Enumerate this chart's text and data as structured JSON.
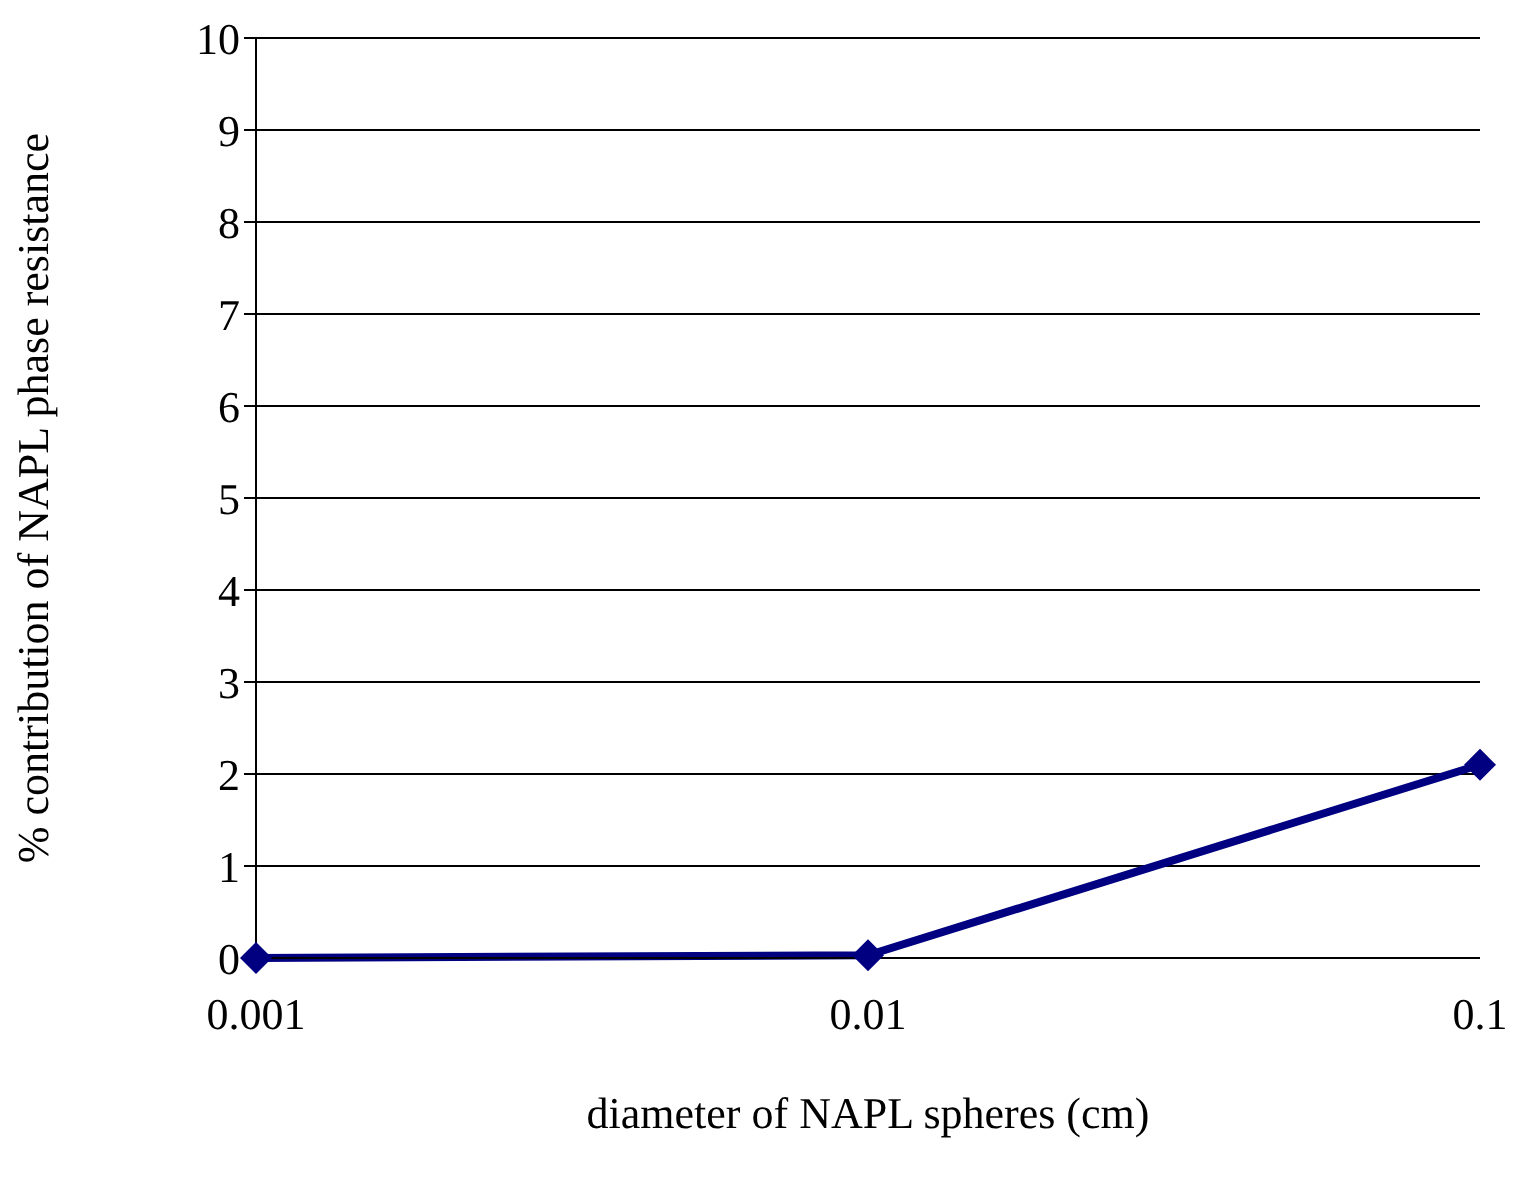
{
  "chart_data": {
    "type": "line",
    "xlabel": "diameter of NAPL spheres (cm)",
    "ylabel": "% contribution of NAPL phase resistance",
    "x": [
      0.001,
      0.01,
      0.1
    ],
    "series": [
      {
        "color": "#000080",
        "values": [
          0,
          0.03,
          2.1
        ]
      }
    ],
    "xlim": [
      0.001,
      0.1
    ],
    "xticks": [
      0.001,
      0.01,
      0.1
    ],
    "ylim": [
      0,
      10
    ],
    "yticks": [
      0,
      1,
      2,
      3,
      4,
      5,
      6,
      7,
      8,
      9,
      10
    ],
    "log": "x",
    "grid": "y",
    "legend": false,
    "marker": "diamond",
    "line_style": "solid"
  }
}
